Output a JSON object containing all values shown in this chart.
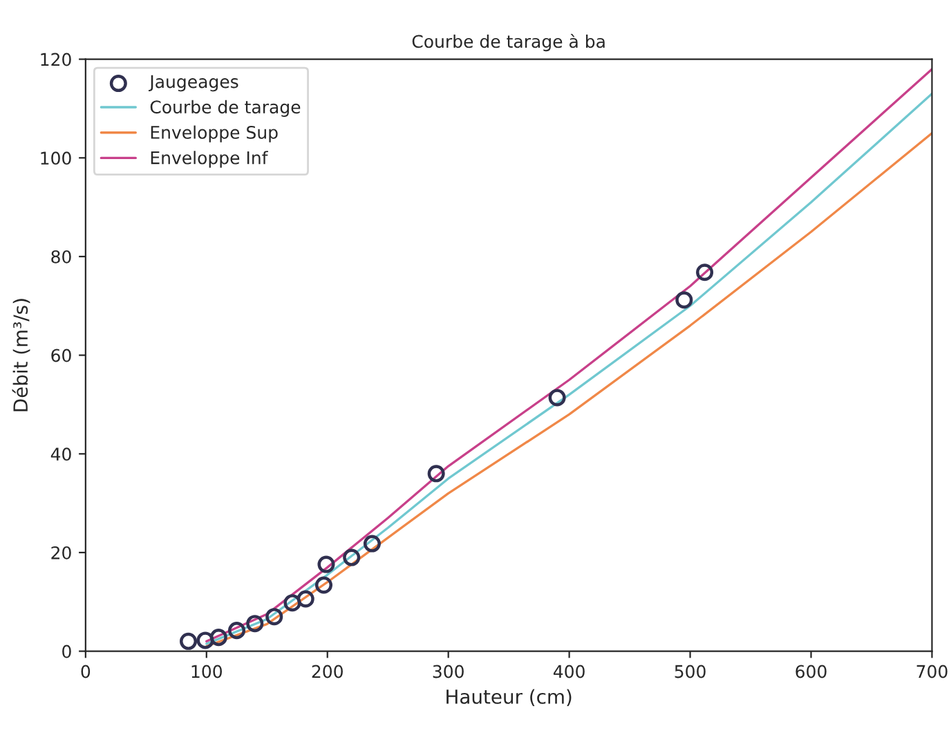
{
  "chart_data": {
    "type": "line",
    "title": "Courbe de tarage à ba",
    "xlabel": "Hauteur (cm)",
    "ylabel": "Débit (m³/s)",
    "xlim": [
      0,
      700
    ],
    "xticks": [
      0,
      100,
      200,
      300,
      400,
      500,
      600,
      700
    ],
    "ylim": [
      0,
      120
    ],
    "yticks": [
      0,
      20,
      40,
      60,
      80,
      100,
      120
    ],
    "grid": false,
    "legend": "top left",
    "series": [
      {
        "name": "Jaugeages",
        "type": "scatter",
        "marker": "circle",
        "color": "#303050",
        "x": [
          85,
          99,
          110,
          125,
          140,
          156,
          171,
          182,
          197,
          199,
          220,
          237,
          290,
          390,
          495,
          512
        ],
        "values": [
          2.0,
          2.2,
          2.8,
          4.2,
          5.6,
          7.0,
          9.8,
          10.6,
          13.4,
          17.6,
          19.0,
          21.8,
          36.0,
          51.4,
          71.2,
          76.8
        ]
      },
      {
        "name": "Courbe de tarage",
        "color": "#70c8d0",
        "x": [
          100,
          150,
          200,
          250,
          300,
          400,
          500,
          600,
          700
        ],
        "values": [
          1.5,
          6.5,
          15.5,
          25,
          35,
          52,
          70,
          91,
          113
        ]
      },
      {
        "name": "Enveloppe Sup",
        "color": "#f08848",
        "x": [
          100,
          150,
          200,
          250,
          300,
          400,
          500,
          600,
          700
        ],
        "values": [
          1.0,
          5.5,
          14,
          23,
          32,
          48,
          66,
          85,
          105
        ]
      },
      {
        "name": "Enveloppe Inf",
        "color": "#c8408a",
        "x": [
          100,
          150,
          200,
          250,
          300,
          400,
          500,
          600,
          700
        ],
        "values": [
          2.0,
          7.5,
          17,
          27,
          37.5,
          55,
          74,
          96,
          118
        ]
      }
    ]
  }
}
